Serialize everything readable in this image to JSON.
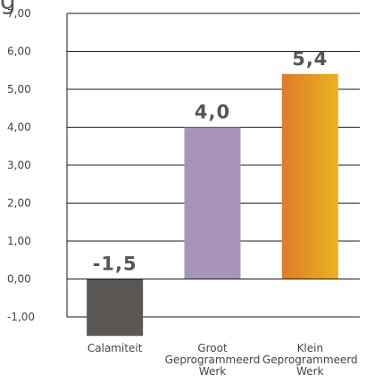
{
  "cut_title": "g",
  "chart_data": {
    "type": "bar",
    "categories": [
      [
        "Calamiteit"
      ],
      [
        "Groot",
        "Geprogrammeerd",
        "Werk"
      ],
      [
        "Klein",
        "Geprogrammeerd",
        "Werk"
      ]
    ],
    "values": [
      -1.5,
      4.0,
      5.4
    ],
    "value_labels": [
      "-1,5",
      "4,0",
      "5,4"
    ],
    "ylim": [
      -1,
      7
    ],
    "yticks": [
      7,
      6,
      5,
      4,
      3,
      2,
      1,
      0,
      -1
    ],
    "ytick_labels": [
      "7,00",
      "6,00",
      "5,00",
      "4,00",
      "3,00",
      "2,00",
      "1,00",
      "0,00",
      "-1,00"
    ],
    "grid": true,
    "bar_colors": [
      "#5a5755",
      "#a894b8",
      "gradient:#e07a2a-#eab21e"
    ]
  }
}
